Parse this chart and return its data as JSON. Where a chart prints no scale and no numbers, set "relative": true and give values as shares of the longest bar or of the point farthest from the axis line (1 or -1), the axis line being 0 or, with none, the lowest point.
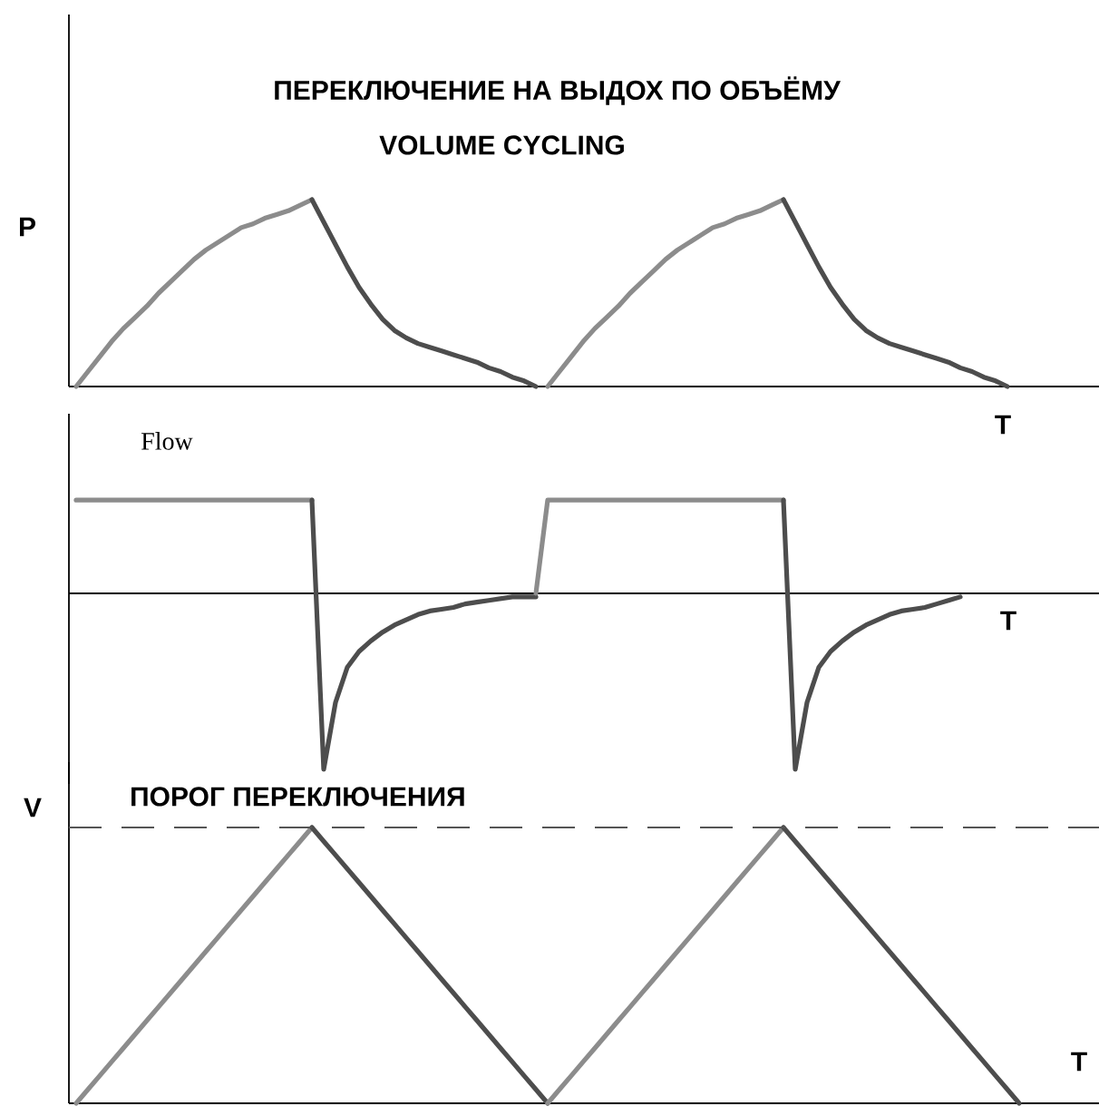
{
  "chart_data": [
    {
      "type": "line",
      "relative": true,
      "title": "ПЕРЕКЛЮЧЕНИЕ НА ВЫДОХ ПО ОБЪЁМУ",
      "subtitle": "VOLUME CYCLING",
      "ylabel": "P",
      "xlabel": "T",
      "categories": [
        null,
        null,
        null,
        null,
        null,
        null,
        null,
        null,
        null,
        null,
        null,
        null,
        null,
        null,
        null,
        null,
        null,
        null,
        null,
        null,
        null,
        null,
        null,
        null,
        null,
        null,
        null,
        null,
        null,
        null,
        null,
        null,
        null,
        null,
        null,
        null,
        null,
        null,
        null,
        null,
        null,
        null,
        null,
        null,
        null,
        null,
        null,
        null,
        null,
        null,
        null,
        null,
        null,
        null,
        null,
        null,
        null,
        null,
        null,
        null,
        null,
        null,
        null,
        null,
        null,
        null,
        null,
        null,
        null,
        null,
        null,
        null,
        null,
        null,
        null,
        null,
        null,
        null,
        null,
        null,
        null,
        null,
        null,
        null,
        null,
        null,
        null
      ],
      "series": [
        {
          "color": "#8c8c8c",
          "values": [
            0,
            0.08,
            0.16,
            0.24,
            0.31,
            0.37,
            0.43,
            0.5,
            0.56,
            0.62,
            0.68,
            0.73,
            0.77,
            0.81,
            0.85,
            0.87,
            0.9,
            0.92,
            0.94,
            0.97,
            1.0,
            null,
            null,
            null,
            null,
            null,
            null,
            null,
            null,
            null,
            null,
            null,
            null,
            null,
            null,
            null,
            null,
            null,
            null,
            null,
            null,
            null,
            null,
            null,
            null,
            null,
            null,
            null,
            null,
            null,
            null,
            null,
            null,
            null,
            null,
            null,
            null,
            null,
            null,
            null,
            null,
            null,
            null,
            null,
            null,
            null,
            null,
            null,
            null,
            null,
            null,
            null,
            null,
            null,
            null,
            null,
            null,
            null,
            null,
            null,
            null,
            null,
            null,
            null,
            null,
            null,
            null
          ]
        },
        {
          "color": "#4d4d4d",
          "values": [
            null,
            null,
            null,
            null,
            null,
            null,
            null,
            null,
            null,
            null,
            null,
            null,
            null,
            null,
            null,
            null,
            null,
            null,
            null,
            null,
            1.0,
            0.88,
            0.76,
            0.64,
            0.53,
            0.44,
            0.36,
            0.3,
            0.26,
            0.23,
            0.21,
            0.19,
            0.17,
            0.15,
            0.13,
            0.1,
            0.08,
            0.05,
            0.03,
            0,
            null,
            null,
            null,
            null,
            null,
            null,
            null,
            null,
            null,
            null,
            null,
            null,
            null,
            null,
            null,
            null,
            null,
            null,
            null,
            null,
            null,
            null,
            null,
            null,
            null,
            null,
            null,
            null,
            null,
            null,
            null,
            null,
            null,
            null,
            null,
            null,
            null,
            null,
            null,
            null,
            null,
            null,
            null,
            null,
            null,
            null,
            null
          ]
        },
        {
          "color": "#8c8c8c",
          "values": [
            null,
            null,
            null,
            null,
            null,
            null,
            null,
            null,
            null,
            null,
            null,
            null,
            null,
            null,
            null,
            null,
            null,
            null,
            null,
            null,
            null,
            null,
            null,
            null,
            null,
            null,
            null,
            null,
            null,
            null,
            null,
            null,
            null,
            null,
            null,
            null,
            null,
            null,
            null,
            null,
            0,
            0.08,
            0.16,
            0.24,
            0.31,
            0.37,
            0.43,
            0.5,
            0.56,
            0.62,
            0.68,
            0.73,
            0.77,
            0.81,
            0.85,
            0.87,
            0.9,
            0.92,
            0.94,
            0.97,
            1.0,
            null,
            null,
            null,
            null,
            null,
            null,
            null,
            null,
            null,
            null,
            null,
            null,
            null,
            null,
            null,
            null,
            null,
            null,
            null,
            null,
            null,
            null,
            null,
            null,
            null,
            null
          ]
        },
        {
          "color": "#4d4d4d",
          "values": [
            null,
            null,
            null,
            null,
            null,
            null,
            null,
            null,
            null,
            null,
            null,
            null,
            null,
            null,
            null,
            null,
            null,
            null,
            null,
            null,
            null,
            null,
            null,
            null,
            null,
            null,
            null,
            null,
            null,
            null,
            null,
            null,
            null,
            null,
            null,
            null,
            null,
            null,
            null,
            null,
            null,
            null,
            null,
            null,
            null,
            null,
            null,
            null,
            null,
            null,
            null,
            null,
            null,
            null,
            null,
            null,
            null,
            null,
            null,
            null,
            1.0,
            0.88,
            0.76,
            0.64,
            0.53,
            0.44,
            0.36,
            0.3,
            0.26,
            0.23,
            0.21,
            0.19,
            0.17,
            0.15,
            0.13,
            0.1,
            0.08,
            0.05,
            0.03,
            0,
            null,
            null,
            null,
            null,
            null,
            null,
            null
          ]
        }
      ]
    },
    {
      "type": "line",
      "relative": true,
      "ylabel": "Flow",
      "xlabel": "T",
      "categories": [
        null,
        null,
        null,
        null,
        null,
        null,
        null,
        null,
        null,
        null,
        null,
        null,
        null,
        null,
        null,
        null,
        null,
        null,
        null,
        null,
        null,
        null,
        null,
        null,
        null,
        null,
        null,
        null,
        null,
        null,
        null,
        null,
        null,
        null,
        null,
        null,
        null,
        null,
        null,
        null,
        null,
        null,
        null,
        null,
        null,
        null,
        null,
        null,
        null,
        null,
        null,
        null,
        null,
        null,
        null,
        null,
        null,
        null,
        null,
        null,
        null,
        null,
        null,
        null,
        null,
        null,
        null,
        null,
        null,
        null,
        null,
        null,
        null,
        null,
        null,
        null,
        null,
        null,
        null,
        null,
        null,
        null,
        null,
        null,
        null,
        null,
        null
      ],
      "series": [
        {
          "color": "#8c8c8c",
          "values": [
            0.53,
            0.53,
            0.53,
            0.53,
            0.53,
            0.53,
            0.53,
            0.53,
            0.53,
            0.53,
            0.53,
            0.53,
            0.53,
            0.53,
            0.53,
            0.53,
            0.53,
            0.53,
            0.53,
            0.53,
            0.53,
            null,
            null,
            null,
            null,
            null,
            null,
            null,
            null,
            null,
            null,
            null,
            null,
            null,
            null,
            null,
            null,
            null,
            null,
            null,
            null,
            null,
            null,
            null,
            null,
            null,
            null,
            null,
            null,
            null,
            null,
            null,
            null,
            null,
            null,
            null,
            null,
            null,
            null,
            null,
            null,
            null,
            null,
            null,
            null,
            null,
            null,
            null,
            null,
            null,
            null,
            null,
            null,
            null,
            null,
            null,
            null,
            null,
            null,
            null,
            null,
            null,
            null,
            null,
            null,
            null,
            null
          ]
        },
        {
          "color": "#4d4d4d",
          "values": [
            null,
            null,
            null,
            null,
            null,
            null,
            null,
            null,
            null,
            null,
            null,
            null,
            null,
            null,
            null,
            null,
            null,
            null,
            null,
            null,
            0.53,
            -1,
            -0.62,
            -0.42,
            -0.33,
            -0.27,
            -0.22,
            -0.18,
            -0.15,
            -0.12,
            -0.1,
            -0.09,
            -0.08,
            -0.06,
            -0.05,
            -0.04,
            -0.03,
            -0.02,
            -0.02,
            -0.02,
            null,
            null,
            null,
            null,
            null,
            null,
            null,
            null,
            null,
            null,
            null,
            null,
            null,
            null,
            null,
            null,
            null,
            null,
            null,
            null,
            null,
            null,
            null,
            null,
            null,
            null,
            null,
            null,
            null,
            null,
            null,
            null,
            null,
            null,
            null,
            null,
            null,
            null,
            null,
            null,
            null,
            null,
            null,
            null,
            null,
            null,
            null
          ]
        },
        {
          "color": "#8c8c8c",
          "values": [
            null,
            null,
            null,
            null,
            null,
            null,
            null,
            null,
            null,
            null,
            null,
            null,
            null,
            null,
            null,
            null,
            null,
            null,
            null,
            null,
            null,
            null,
            null,
            null,
            null,
            null,
            null,
            null,
            null,
            null,
            null,
            null,
            null,
            null,
            null,
            null,
            null,
            null,
            null,
            0,
            0.53,
            0.53,
            0.53,
            0.53,
            0.53,
            0.53,
            0.53,
            0.53,
            0.53,
            0.53,
            0.53,
            0.53,
            0.53,
            0.53,
            0.53,
            0.53,
            0.53,
            0.53,
            0.53,
            0.53,
            0.53,
            null,
            null,
            null,
            null,
            null,
            null,
            null,
            null,
            null,
            null,
            null,
            null,
            null,
            null,
            null,
            null,
            null,
            null,
            null,
            null,
            null,
            null,
            null,
            null,
            null,
            null
          ]
        },
        {
          "color": "#4d4d4d",
          "values": [
            null,
            null,
            null,
            null,
            null,
            null,
            null,
            null,
            null,
            null,
            null,
            null,
            null,
            null,
            null,
            null,
            null,
            null,
            null,
            null,
            null,
            null,
            null,
            null,
            null,
            null,
            null,
            null,
            null,
            null,
            null,
            null,
            null,
            null,
            null,
            null,
            null,
            null,
            null,
            null,
            null,
            null,
            null,
            null,
            null,
            null,
            null,
            null,
            null,
            null,
            null,
            null,
            null,
            null,
            null,
            null,
            null,
            null,
            null,
            null,
            0.53,
            -1,
            -0.62,
            -0.42,
            -0.33,
            -0.27,
            -0.22,
            -0.18,
            -0.15,
            -0.12,
            -0.1,
            -0.09,
            -0.08,
            -0.06,
            -0.04,
            -0.02,
            null,
            null,
            null,
            null,
            null,
            null,
            null,
            null,
            null,
            null,
            null
          ]
        }
      ]
    },
    {
      "type": "line",
      "relative": true,
      "ylabel": "V",
      "xlabel": "T",
      "categories": [
        null,
        null,
        null,
        null,
        null,
        null,
        null,
        null,
        null,
        null,
        null,
        null,
        null,
        null,
        null,
        null,
        null,
        null,
        null,
        null,
        null,
        null,
        null,
        null,
        null,
        null,
        null,
        null,
        null,
        null,
        null,
        null,
        null,
        null,
        null,
        null,
        null,
        null,
        null,
        null,
        null,
        null,
        null,
        null,
        null,
        null,
        null,
        null,
        null,
        null,
        null,
        null,
        null,
        null,
        null,
        null,
        null,
        null,
        null,
        null,
        null,
        null,
        null,
        null,
        null,
        null,
        null,
        null,
        null,
        null,
        null,
        null,
        null,
        null,
        null,
        null,
        null,
        null,
        null,
        null,
        null,
        null,
        null,
        null,
        null,
        null,
        null
      ],
      "series": [
        {
          "color": "#8c8c8c",
          "values": [
            0,
            0.05,
            0.1,
            0.15,
            0.2,
            0.25,
            0.3,
            0.35,
            0.4,
            0.45,
            0.5,
            0.55,
            0.6,
            0.65,
            0.7,
            0.75,
            0.8,
            0.85,
            0.9,
            0.95,
            1.0,
            null,
            null,
            null,
            null,
            null,
            null,
            null,
            null,
            null,
            null,
            null,
            null,
            null,
            null,
            null,
            null,
            null,
            null,
            null,
            null,
            null,
            null,
            null,
            null,
            null,
            null,
            null,
            null,
            null,
            null,
            null,
            null,
            null,
            null,
            null,
            null,
            null,
            null,
            null,
            null,
            null,
            null,
            null,
            null,
            null,
            null,
            null,
            null,
            null,
            null,
            null,
            null,
            null,
            null,
            null,
            null,
            null,
            null,
            null,
            null,
            null,
            null,
            null,
            null,
            null,
            null
          ]
        },
        {
          "color": "#4d4d4d",
          "values": [
            null,
            null,
            null,
            null,
            null,
            null,
            null,
            null,
            null,
            null,
            null,
            null,
            null,
            null,
            null,
            null,
            null,
            null,
            null,
            null,
            1.0,
            0.95,
            0.9,
            0.85,
            0.8,
            0.75,
            0.7,
            0.65,
            0.6,
            0.55,
            0.5,
            0.45,
            0.4,
            0.35,
            0.3,
            0.25,
            0.2,
            0.15,
            0.1,
            0.05,
            0,
            null,
            null,
            null,
            null,
            null,
            null,
            null,
            null,
            null,
            null,
            null,
            null,
            null,
            null,
            null,
            null,
            null,
            null,
            null,
            null,
            null,
            null,
            null,
            null,
            null,
            null,
            null,
            null,
            null,
            null,
            null,
            null,
            null,
            null,
            null,
            null,
            null,
            null,
            null,
            null,
            null,
            null,
            null,
            null,
            null,
            null
          ]
        },
        {
          "color": "#8c8c8c",
          "values": [
            null,
            null,
            null,
            null,
            null,
            null,
            null,
            null,
            null,
            null,
            null,
            null,
            null,
            null,
            null,
            null,
            null,
            null,
            null,
            null,
            null,
            null,
            null,
            null,
            null,
            null,
            null,
            null,
            null,
            null,
            null,
            null,
            null,
            null,
            null,
            null,
            null,
            null,
            null,
            null,
            0,
            0.05,
            0.1,
            0.15,
            0.2,
            0.25,
            0.3,
            0.35,
            0.4,
            0.45,
            0.5,
            0.55,
            0.6,
            0.65,
            0.7,
            0.75,
            0.8,
            0.85,
            0.9,
            0.95,
            1.0,
            null,
            null,
            null,
            null,
            null,
            null,
            null,
            null,
            null,
            null,
            null,
            null,
            null,
            null,
            null,
            null,
            null,
            null,
            null,
            null,
            null,
            null,
            null,
            null,
            null,
            null
          ]
        },
        {
          "color": "#4d4d4d",
          "values": [
            null,
            null,
            null,
            null,
            null,
            null,
            null,
            null,
            null,
            null,
            null,
            null,
            null,
            null,
            null,
            null,
            null,
            null,
            null,
            null,
            null,
            null,
            null,
            null,
            null,
            null,
            null,
            null,
            null,
            null,
            null,
            null,
            null,
            null,
            null,
            null,
            null,
            null,
            null,
            null,
            null,
            null,
            null,
            null,
            null,
            null,
            null,
            null,
            null,
            null,
            null,
            null,
            null,
            null,
            null,
            null,
            null,
            null,
            null,
            null,
            1.0,
            0.95,
            0.9,
            0.85,
            0.8,
            0.75,
            0.7,
            0.65,
            0.6,
            0.55,
            0.5,
            0.45,
            0.4,
            0.35,
            0.3,
            0.25,
            0.2,
            0.15,
            0.1,
            0.05,
            0,
            null,
            null,
            null,
            null,
            null,
            null
          ]
        }
      ],
      "ref_lines": [
        {
          "axis": "y",
          "value": 1,
          "label": "ПОРОГ ПЕРЕКЛЮЧЕНИЯ",
          "color": "#555555",
          "line_style": "dashed"
        }
      ]
    }
  ]
}
